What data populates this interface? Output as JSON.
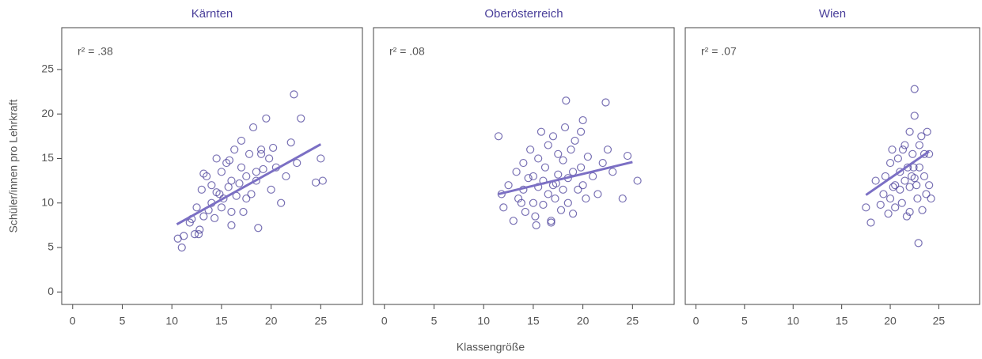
{
  "shared": {
    "ylabel": "Schüler/innen pro Lehrkraft",
    "xlabel": "Klassengröße"
  },
  "chart_data": [
    {
      "type": "scatter",
      "title": "Kärnten",
      "annotation": "r² = .38",
      "color": "#4a3f9a",
      "fit_color": "#7b6fc4",
      "xlim": [
        -1.1,
        29.2
      ],
      "ylim": [
        -1.4,
        29.7
      ],
      "xticks": [
        0,
        5,
        10,
        15,
        20,
        25
      ],
      "yticks": [
        0,
        5,
        10,
        15,
        20,
        25
      ],
      "x": [
        10.6,
        11,
        11.2,
        11.8,
        12,
        12.3,
        12.5,
        12.8,
        13,
        13.2,
        13.5,
        13.7,
        14,
        14,
        14.3,
        14.5,
        14.8,
        15,
        15,
        15.2,
        15.5,
        15.7,
        16,
        16,
        16.3,
        16.5,
        16.8,
        17,
        17,
        17.2,
        17.5,
        17.8,
        18,
        18.2,
        18.5,
        18.7,
        19,
        19.2,
        19.5,
        19.8,
        20,
        20.2,
        20.5,
        21,
        21.5,
        22,
        22.3,
        22.6,
        23,
        24.5,
        25,
        25.2,
        13.2,
        15.8,
        17.5,
        18.5,
        16,
        14.5,
        19,
        12.7
      ],
      "y": [
        6,
        5,
        6.3,
        7.8,
        8.2,
        6.5,
        9.5,
        7,
        11.5,
        8.5,
        13,
        9.2,
        10,
        12,
        8.3,
        15,
        11,
        9.5,
        13.5,
        10.5,
        14.5,
        11.8,
        7.5,
        12.5,
        16,
        10.8,
        12.2,
        17,
        14,
        9,
        13,
        15.5,
        11,
        18.5,
        12.5,
        7.2,
        16,
        13.8,
        19.5,
        15,
        11.5,
        16.2,
        14,
        10,
        13,
        16.8,
        22.2,
        14.5,
        19.5,
        12.3,
        15,
        12.5,
        13.3,
        14.8,
        10.5,
        13.5,
        9,
        11.2,
        15.5,
        6.5
      ],
      "fit": {
        "x": [
          10.5,
          25
        ],
        "y": [
          7.6,
          16.6
        ]
      }
    },
    {
      "type": "scatter",
      "title": "Oberösterreich",
      "annotation": "r² = .08",
      "color": "#4a3f9a",
      "fit_color": "#7b6fc4",
      "xlim": [
        -1.1,
        29.2
      ],
      "ylim": [
        -1.4,
        29.7
      ],
      "xticks": [
        0,
        5,
        10,
        15,
        20,
        25
      ],
      "x": [
        11.5,
        11.8,
        12,
        12.5,
        13,
        13.3,
        13.5,
        14,
        14,
        14.2,
        14.5,
        14.7,
        15,
        15,
        15.2,
        15.5,
        15.5,
        15.8,
        16,
        16,
        16.2,
        16.5,
        16.5,
        16.8,
        17,
        17,
        17.2,
        17.5,
        17.5,
        17.8,
        18,
        18,
        18.2,
        18.5,
        18.5,
        18.8,
        19,
        19,
        19.2,
        19.5,
        19.8,
        20,
        20,
        20.3,
        20.5,
        21,
        21.5,
        22,
        22.3,
        22.5,
        23,
        24,
        24.5,
        25.5,
        18.3,
        19.8,
        15.3,
        16.8,
        13.8,
        17.3
      ],
      "y": [
        17.5,
        11,
        9.5,
        12,
        8,
        13.5,
        10.5,
        11.5,
        14.5,
        9,
        12.8,
        16,
        10,
        13,
        8.5,
        11.8,
        15,
        18,
        9.8,
        12.5,
        14,
        11,
        16.5,
        8,
        12,
        17.5,
        10.5,
        13.2,
        15.5,
        9.2,
        11.5,
        14.8,
        18.5,
        10,
        12.8,
        16,
        13.5,
        8.8,
        17,
        11.5,
        14,
        12,
        19.3,
        10.5,
        15.2,
        13,
        11,
        14.5,
        21.3,
        16,
        13.5,
        10.5,
        15.3,
        12.5,
        21.5,
        18,
        7.5,
        7.8,
        10,
        12.2
      ],
      "fit": {
        "x": [
          11.5,
          25
        ],
        "y": [
          11,
          14.6
        ]
      }
    },
    {
      "type": "scatter",
      "title": "Wien",
      "annotation": "r² = .07",
      "color": "#4a3f9a",
      "fit_color": "#7b6fc4",
      "xlim": [
        -1.1,
        29.2
      ],
      "ylim": [
        -1.4,
        29.7
      ],
      "xticks": [
        0,
        5,
        10,
        15,
        20,
        25
      ],
      "x": [
        17.5,
        18,
        18.5,
        19,
        19.3,
        19.5,
        19.8,
        20,
        20,
        20.2,
        20.5,
        20.5,
        20.8,
        21,
        21,
        21.2,
        21.5,
        21.5,
        21.8,
        22,
        22,
        22,
        22.2,
        22.3,
        22.5,
        22.5,
        22.7,
        22.8,
        23,
        23,
        23.2,
        23.3,
        23.5,
        23.5,
        23.8,
        24,
        24,
        24.2,
        21.7,
        22.5,
        22.9,
        22.4,
        20.3,
        21.3,
        23.7
      ],
      "y": [
        9.5,
        7.8,
        12.5,
        9.8,
        11,
        13,
        8.8,
        14.5,
        10.5,
        16,
        12,
        9.5,
        15,
        11.5,
        13.5,
        10,
        16.5,
        12.5,
        14,
        9,
        11.8,
        18,
        13,
        15.5,
        22.8,
        19.8,
        12,
        10.5,
        16.5,
        14,
        17.5,
        9.2,
        13,
        15.5,
        18,
        12,
        15.5,
        10.5,
        8.5,
        12.8,
        5.5,
        14,
        11.8,
        16,
        11
      ],
      "fit": {
        "x": [
          17.5,
          24
        ],
        "y": [
          10.9,
          15.8
        ]
      }
    }
  ]
}
